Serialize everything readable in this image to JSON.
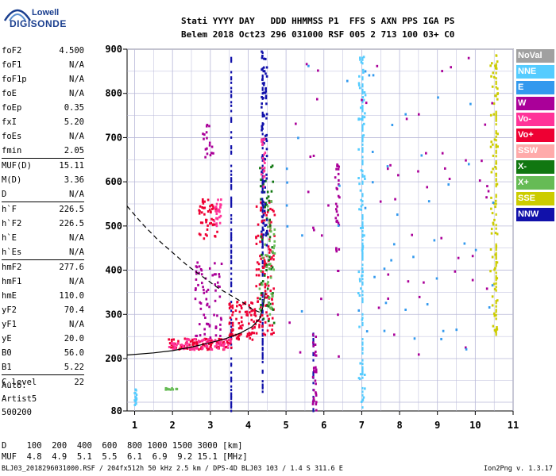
{
  "logo": {
    "line1": "Lowell",
    "line2": "DIGISONDE"
  },
  "header": {
    "line1": "Stati YYYY DAY   DDD HHMMSS P1  FFS S AXN PPS IGA PS",
    "line2": "Belem 2018 Oct23 296 031000 RSF 005 2 713 100 03+ C0"
  },
  "params": {
    "group1": [
      {
        "label": "foF2",
        "value": "4.500"
      },
      {
        "label": "foF1",
        "value": "N/A"
      },
      {
        "label": "foF1p",
        "value": "N/A"
      },
      {
        "label": "foE",
        "value": "N/A"
      },
      {
        "label": "foEp",
        "value": "0.35"
      },
      {
        "label": "fxI",
        "value": "5.20"
      },
      {
        "label": "foEs",
        "value": "N/A"
      },
      {
        "label": "fmin",
        "value": "2.05"
      }
    ],
    "group2": [
      {
        "label": "MUF(D)",
        "value": "15.11"
      },
      {
        "label": "M(D)",
        "value": "3.36"
      },
      {
        "label": "D",
        "value": "N/A"
      }
    ],
    "group3": [
      {
        "label": "h`F",
        "value": "226.5"
      },
      {
        "label": "h`F2",
        "value": "226.5"
      },
      {
        "label": "h`E",
        "value": "N/A"
      },
      {
        "label": "h`Es",
        "value": "N/A"
      }
    ],
    "group4": [
      {
        "label": "hmF2",
        "value": "277.6"
      },
      {
        "label": "hmF1",
        "value": "N/A"
      },
      {
        "label": "hmE",
        "value": "110.0"
      },
      {
        "label": "yF2",
        "value": "70.4"
      },
      {
        "label": "yF1",
        "value": "N/A"
      },
      {
        "label": "yE",
        "value": "20.0"
      },
      {
        "label": "B0",
        "value": "56.0"
      },
      {
        "label": "B1",
        "value": "5.22"
      }
    ],
    "group5": [
      {
        "label": "C-level",
        "value": "22"
      }
    ]
  },
  "auto": {
    "line1": "Auto:",
    "line2": "Artist5",
    "line3": "500200"
  },
  "mufblock": {
    "d_row": "D    100  200  400  600  800 1000 1500 3000 [km]",
    "muf_row": "MUF  4.8  4.9  5.1  5.5  6.1  6.9  9.2 15.1 [MHz]"
  },
  "footer": {
    "left": "BLJ03_2018296031000.RSF / 204fx512h 50 kHz 2.5 km / DPS-4D BLJ03 103 / 1.4 S 311.6 E",
    "right": "Ion2Png v. 1.3.17"
  },
  "legend": [
    {
      "label": "NoVal",
      "color": "#a0a0a0"
    },
    {
      "label": "NNE",
      "color": "#55ccff"
    },
    {
      "label": "E",
      "color": "#3399ee"
    },
    {
      "label": "W",
      "color": "#aa0099"
    },
    {
      "label": "Vo-",
      "color": "#ff3399"
    },
    {
      "label": "Vo+",
      "color": "#ee0033"
    },
    {
      "label": "SSW",
      "color": "#ffaaaa"
    },
    {
      "label": "X-",
      "color": "#117711"
    },
    {
      "label": "X+",
      "color": "#66bb55"
    },
    {
      "label": "SSE",
      "color": "#cccc00"
    },
    {
      "label": "NNW",
      "color": "#1111aa"
    }
  ],
  "chart_data": {
    "type": "scatter",
    "xlim": [
      0.8,
      11
    ],
    "ylim": [
      80,
      900
    ],
    "x_ticks": [
      "1",
      "2",
      "3",
      "4",
      "5",
      "6",
      "7",
      "8",
      "9",
      "10",
      "11"
    ],
    "y_ticks": [
      "80",
      "200",
      "300",
      "400",
      "500",
      "600",
      "700",
      "800",
      "900"
    ],
    "grid": true,
    "curves": [
      {
        "name": "",
        "style": "solid",
        "points": [
          [
            0.8,
            208
          ],
          [
            1.5,
            213
          ],
          [
            2.0,
            218
          ],
          [
            2.5,
            226
          ],
          [
            3.0,
            236
          ],
          [
            3.4,
            245
          ],
          [
            3.8,
            258
          ],
          [
            4.1,
            272
          ],
          [
            4.3,
            290
          ],
          [
            4.4,
            320
          ],
          [
            4.45,
            350
          ]
        ]
      },
      {
        "name": "",
        "style": "dashed",
        "points": [
          [
            0.8,
            545
          ],
          [
            1.2,
            505
          ],
          [
            1.6,
            470
          ],
          [
            2.0,
            440
          ],
          [
            2.4,
            410
          ],
          [
            2.8,
            385
          ],
          [
            3.2,
            360
          ],
          [
            3.6,
            340
          ],
          [
            3.9,
            325
          ],
          [
            4.1,
            312
          ],
          [
            4.3,
            305
          ]
        ]
      }
    ],
    "echo_clusters": [
      {
        "f": [
          1.9,
          3.6
        ],
        "h": [
          220,
          245
        ],
        "color": "#ee0033",
        "n": 110
      },
      {
        "f": [
          1.9,
          3.6
        ],
        "h": [
          220,
          245
        ],
        "color": "#ff3399",
        "n": 80
      },
      {
        "f": [
          2.6,
          3.3
        ],
        "h": [
          245,
          420
        ],
        "color": "#aa0099",
        "n": 70
      },
      {
        "f": [
          2.7,
          3.2
        ],
        "h": [
          470,
          560
        ],
        "color": "#ee0033",
        "n": 50
      },
      {
        "f": [
          3.1,
          3.3
        ],
        "h": [
          500,
          560
        ],
        "color": "#ff3399",
        "n": 25
      },
      {
        "f": [
          2.8,
          3.1
        ],
        "h": [
          640,
          730
        ],
        "color": "#aa0099",
        "n": 18
      },
      {
        "f": [
          3.5,
          4.2
        ],
        "h": [
          240,
          330
        ],
        "color": "#ee0033",
        "n": 90
      },
      {
        "f": [
          4.2,
          4.7
        ],
        "h": [
          250,
          560
        ],
        "color": "#ee0033",
        "n": 120
      },
      {
        "f": [
          4.3,
          4.7
        ],
        "h": [
          280,
          640
        ],
        "color": "#117711",
        "n": 60
      },
      {
        "f": [
          4.3,
          4.7
        ],
        "h": [
          300,
          560
        ],
        "color": "#66bb55",
        "n": 40
      },
      {
        "f": [
          4.35,
          4.5
        ],
        "h": [
          450,
          900
        ],
        "color": "#1111aa",
        "n": 80
      },
      {
        "f": [
          4.35,
          4.45
        ],
        "h": [
          580,
          700
        ],
        "color": "#ff3399",
        "n": 20
      },
      {
        "f": [
          5.7,
          5.8
        ],
        "h": [
          80,
          260
        ],
        "color": "#aa0099",
        "n": 30
      },
      {
        "f": [
          6.3,
          6.4
        ],
        "h": [
          380,
          640
        ],
        "color": "#aa0099",
        "n": 30
      },
      {
        "f": [
          6.9,
          7.1
        ],
        "h": [
          80,
          900
        ],
        "color": "#55ccff",
        "n": 60
      },
      {
        "f": [
          10.4,
          10.6
        ],
        "h": [
          250,
          890
        ],
        "color": "#cccc00",
        "n": 70
      },
      {
        "f": [
          5.0,
          10.5
        ],
        "h": [
          200,
          880
        ],
        "color": "#aa0099",
        "n": 60
      },
      {
        "f": [
          5.0,
          10.5
        ],
        "h": [
          200,
          880
        ],
        "color": "#3399ee",
        "n": 50
      },
      {
        "f": [
          1.8,
          2.2
        ],
        "h": [
          128,
          132
        ],
        "color": "#66bb55",
        "n": 12
      },
      {
        "f": [
          1.0,
          1.05
        ],
        "h": [
          80,
          130
        ],
        "color": "#55ccff",
        "n": 15
      }
    ],
    "columns": [
      {
        "f": 3.55,
        "h": [
          80,
          890
        ],
        "color": "#1111aa"
      },
      {
        "f": 4.38,
        "h": [
          120,
          900
        ],
        "color": "#1111aa"
      },
      {
        "f": 5.72,
        "h": [
          80,
          260
        ],
        "color": "#1111aa"
      },
      {
        "f": 7.02,
        "h": [
          80,
          880
        ],
        "color": "#55ccff"
      },
      {
        "f": 10.55,
        "h": [
          250,
          890
        ],
        "color": "#cccc00"
      }
    ]
  }
}
